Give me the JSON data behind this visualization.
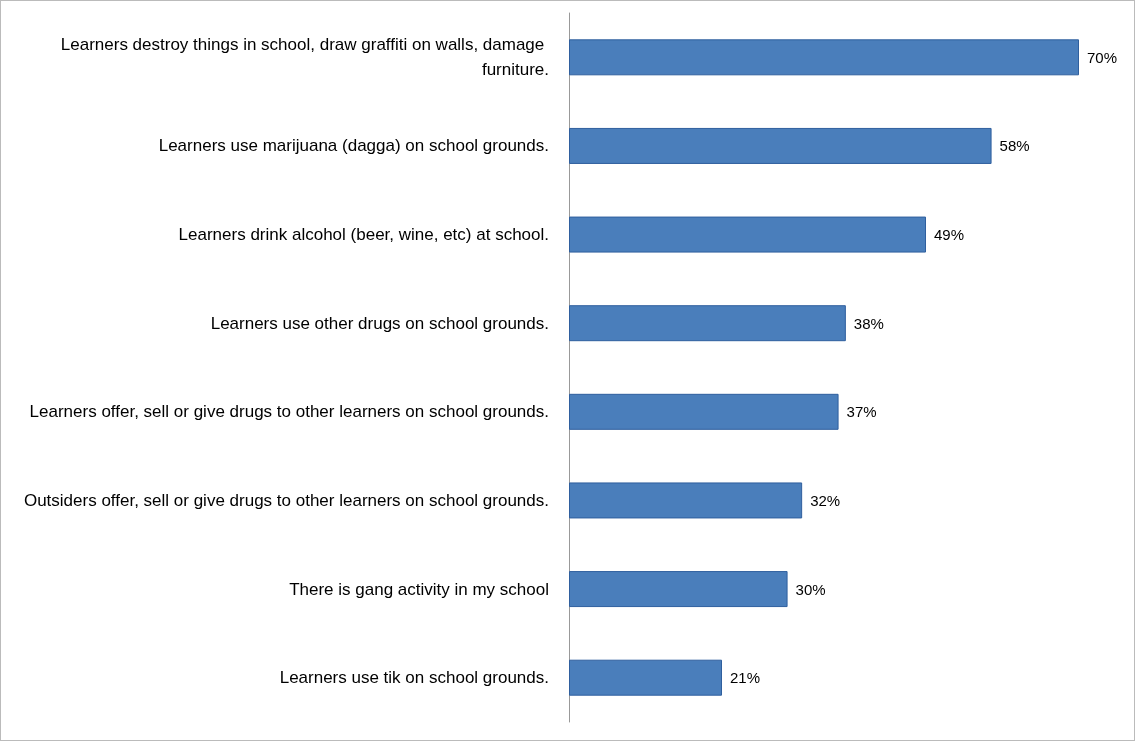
{
  "chart_data": {
    "type": "bar",
    "orientation": "horizontal",
    "categories": [
      "Learners destroy things in school, draw graffiti on walls, damage furniture.",
      "Learners use marijuana (dagga) on school grounds.",
      "Learners drink alcohol (beer, wine, etc) at school.",
      "Learners use other drugs on school grounds.",
      "Learners offer, sell or give drugs to other learners on school grounds.",
      "Outsiders offer, sell or give drugs to other learners on school grounds.",
      "There is gang activity in my school",
      "Learners use tik on school grounds."
    ],
    "values": [
      70,
      58,
      49,
      38,
      37,
      32,
      30,
      21
    ],
    "value_labels": [
      "70%",
      "58%",
      "49%",
      "38%",
      "37%",
      "32%",
      "30%",
      "21%"
    ],
    "color": "#4a7ebb",
    "tick_labels": "y"
  }
}
